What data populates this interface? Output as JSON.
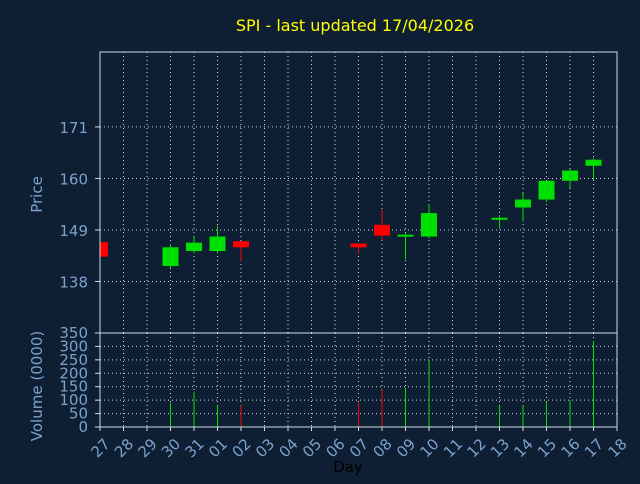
{
  "chart_data": {
    "type": "candlestick",
    "title": "SPI - last updated 17/04/2026",
    "xlabel": "Day",
    "price_panel": {
      "ylabel": "Price",
      "ylim": [
        127,
        187
      ],
      "yticks": [
        138,
        149,
        160,
        171
      ],
      "grid": true
    },
    "volume_panel": {
      "ylabel": "Volume (0000)",
      "ylim": [
        0,
        350
      ],
      "yticks": [
        0,
        50,
        100,
        150,
        200,
        250,
        300,
        350
      ],
      "grid": true
    },
    "x_ticks": [
      "27",
      "28",
      "29",
      "30",
      "31",
      "01",
      "02",
      "03",
      "04",
      "05",
      "06",
      "07",
      "08",
      "09",
      "10",
      "11",
      "12",
      "13",
      "14",
      "15",
      "16",
      "17",
      "18"
    ],
    "candles": [
      {
        "x": "27",
        "open": 146.4,
        "high": 146.4,
        "low": 143.3,
        "close": 143.3,
        "volume": 0
      },
      {
        "x": "30",
        "open": 141.3,
        "high": 146.0,
        "low": 140.8,
        "close": 145.3,
        "volume": 90
      },
      {
        "x": "31",
        "open": 144.5,
        "high": 147.6,
        "low": 144.0,
        "close": 146.3,
        "volume": 130
      },
      {
        "x": "01",
        "open": 144.5,
        "high": 149.9,
        "low": 144.0,
        "close": 147.6,
        "volume": 80
      },
      {
        "x": "02",
        "open": 146.6,
        "high": 146.6,
        "low": 142.4,
        "close": 145.3,
        "volume": 80
      },
      {
        "x": "07",
        "open": 146.1,
        "high": 146.1,
        "low": 144.0,
        "close": 145.3,
        "volume": 90
      },
      {
        "x": "08",
        "open": 150.1,
        "high": 153.4,
        "low": 146.8,
        "close": 147.8,
        "volume": 140
      },
      {
        "x": "09",
        "open": 147.6,
        "high": 148.3,
        "low": 142.8,
        "close": 148.0,
        "volume": 145
      },
      {
        "x": "10",
        "open": 147.6,
        "high": 154.5,
        "low": 147.2,
        "close": 152.6,
        "volume": 250
      },
      {
        "x": "13",
        "open": 151.4,
        "high": 152.2,
        "low": 149.2,
        "close": 151.6,
        "volume": 80
      },
      {
        "x": "14",
        "open": 153.8,
        "high": 157.0,
        "low": 150.8,
        "close": 155.5,
        "volume": 80
      },
      {
        "x": "15",
        "open": 155.5,
        "high": 159.5,
        "low": 155.0,
        "close": 159.5,
        "volume": 95
      },
      {
        "x": "16",
        "open": 159.5,
        "high": 162.0,
        "low": 158.0,
        "close": 161.7,
        "volume": 100
      },
      {
        "x": "17",
        "open": 162.7,
        "high": 164.4,
        "low": 159.7,
        "close": 164.0,
        "volume": 320
      }
    ],
    "colors": {
      "background": "#0f1f33",
      "title": "#ffff00",
      "axis_text": "#7aa2cc",
      "frame": "#cfd8e3",
      "grid": "#cfd8e3",
      "up": "#00e000",
      "down": "#ff0000"
    }
  }
}
